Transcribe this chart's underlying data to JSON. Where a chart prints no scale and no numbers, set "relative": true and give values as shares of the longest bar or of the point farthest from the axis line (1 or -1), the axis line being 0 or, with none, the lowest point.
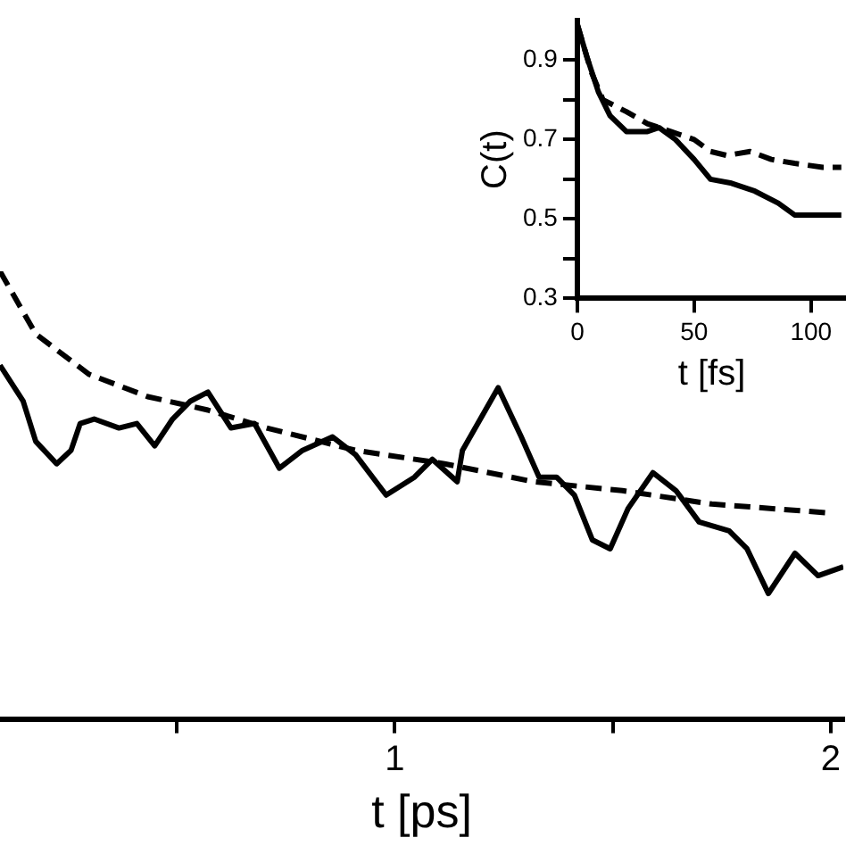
{
  "chart_data": [
    {
      "type": "line",
      "xlabel": "t [ps]",
      "relative": true,
      "xlim": [
        0.094,
        2.029
      ],
      "xticks": [
        {
          "value": 0.5,
          "label": null
        },
        1,
        {
          "value": 1.5,
          "label": null
        },
        2
      ],
      "tick_labels": "x",
      "grid": false,
      "legend": false,
      "marker": "none",
      "series": [
        {
          "color": "#000000",
          "line_style": "solid",
          "x": [
            0.094,
            0.147,
            0.176,
            0.224,
            0.257,
            0.278,
            0.31,
            0.367,
            0.408,
            0.449,
            0.49,
            0.531,
            0.571,
            0.624,
            0.678,
            0.735,
            0.788,
            0.857,
            0.91,
            0.98,
            1.045,
            1.086,
            1.143,
            1.155,
            1.237,
            1.29,
            1.331,
            1.371,
            1.412,
            1.453,
            1.494,
            1.535,
            1.592,
            1.645,
            1.698,
            1.767,
            1.808,
            1.857,
            1.918,
            1.971,
            2.029
          ],
          "values": [
            0.79,
            0.71,
            0.62,
            0.57,
            0.6,
            0.66,
            0.67,
            0.65,
            0.66,
            0.61,
            0.67,
            0.71,
            0.73,
            0.65,
            0.66,
            0.56,
            0.6,
            0.63,
            0.59,
            0.5,
            0.54,
            0.58,
            0.53,
            0.6,
            0.74,
            0.63,
            0.54,
            0.54,
            0.5,
            0.4,
            0.38,
            0.47,
            0.55,
            0.51,
            0.44,
            0.42,
            0.38,
            0.28,
            0.37,
            0.32,
            0.34
          ]
        },
        {
          "color": "#000000",
          "line_style": "dashed",
          "x": [
            0.094,
            0.176,
            0.298,
            0.433,
            0.571,
            0.706,
            0.91,
            1.114,
            1.318,
            1.522,
            1.727,
            2.0
          ],
          "values": [
            1.0,
            0.86,
            0.77,
            0.72,
            0.69,
            0.65,
            0.6,
            0.57,
            0.53,
            0.51,
            0.48,
            0.46
          ]
        }
      ]
    },
    {
      "type": "line",
      "xlabel": "t [fs]",
      "ylabel": "C(t)",
      "xlim": [
        0,
        115
      ],
      "xticks": [
        0,
        50,
        100
      ],
      "ylim": [
        0.3,
        1.0
      ],
      "yticks": [
        0.3,
        {
          "value": 0.4,
          "label": null
        },
        0.5,
        {
          "value": 0.6,
          "label": null
        },
        0.7,
        {
          "value": 0.8,
          "label": null
        },
        0.9
      ],
      "grid": false,
      "legend": false,
      "marker": "none",
      "series": [
        {
          "color": "#000000",
          "line_style": "solid",
          "x": [
            0,
            4,
            9,
            14,
            21,
            30,
            35,
            42,
            50,
            57,
            66,
            76,
            86,
            93,
            102,
            113
          ],
          "values": [
            0.99,
            0.91,
            0.82,
            0.76,
            0.72,
            0.72,
            0.73,
            0.7,
            0.65,
            0.6,
            0.59,
            0.57,
            0.54,
            0.51,
            0.51,
            0.51
          ]
        },
        {
          "color": "#000000",
          "line_style": "dashed",
          "x": [
            0,
            6,
            11,
            21,
            30,
            40,
            50,
            57,
            64,
            74,
            83,
            93,
            105,
            113
          ],
          "values": [
            0.99,
            0.87,
            0.8,
            0.77,
            0.74,
            0.72,
            0.7,
            0.67,
            0.66,
            0.67,
            0.65,
            0.64,
            0.63,
            0.63
          ]
        }
      ]
    }
  ]
}
